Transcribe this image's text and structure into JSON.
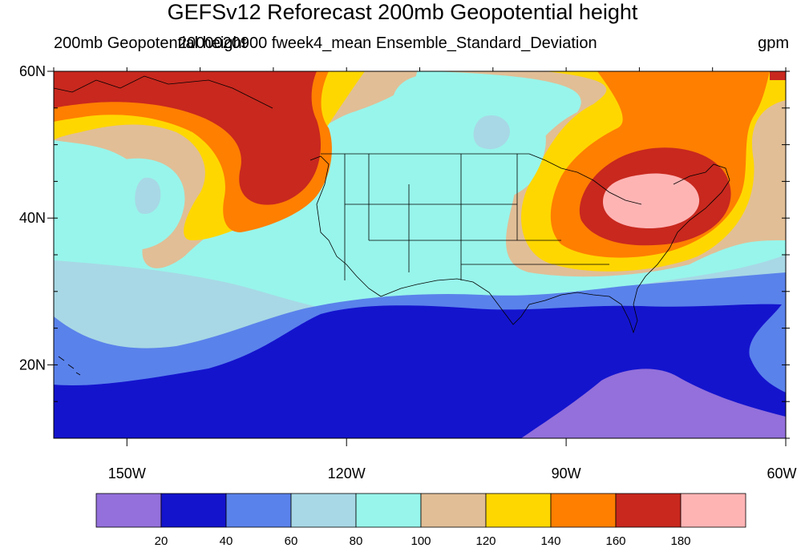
{
  "title": "GEFSv12 Reforecast 200mb Geopotential height",
  "subtitle_left": "200mb Geopotential height",
  "subtitle_center": "2000020900 fweek4_mean Ensemble_Standard_Deviation",
  "units": "gpm",
  "map": {
    "lat_range": [
      10,
      60
    ],
    "lon_range": [
      -160,
      -60
    ],
    "lat_ticks": [
      {
        "value": 60,
        "label": "60N"
      },
      {
        "value": 40,
        "label": "40N"
      },
      {
        "value": 20,
        "label": "20N"
      }
    ],
    "lon_ticks": [
      {
        "value": -150,
        "label": "150W"
      },
      {
        "value": -120,
        "label": "120W"
      },
      {
        "value": -90,
        "label": "90W"
      },
      {
        "value": -60,
        "label": "60W"
      }
    ]
  },
  "colorbar": {
    "colors": [
      "#9370DB",
      "#1414CD",
      "#5A82EB",
      "#A8D8E5",
      "#98F5EB",
      "#E1BE96",
      "#FFD700",
      "#FF7F00",
      "#C8281E",
      "#FFB4B4"
    ],
    "labels": [
      "20",
      "40",
      "60",
      "80",
      "100",
      "120",
      "140",
      "160",
      "180"
    ]
  }
}
